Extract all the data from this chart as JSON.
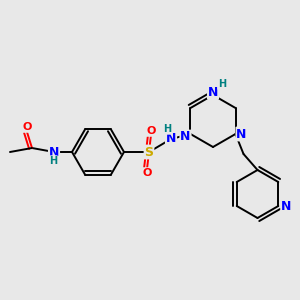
{
  "bg": "#e8e8e8",
  "C": "#000000",
  "N": "#0000ff",
  "O": "#ff0000",
  "S": "#ccaa00",
  "H": "#008080",
  "figsize": [
    3.0,
    3.0
  ],
  "dpi": 100
}
